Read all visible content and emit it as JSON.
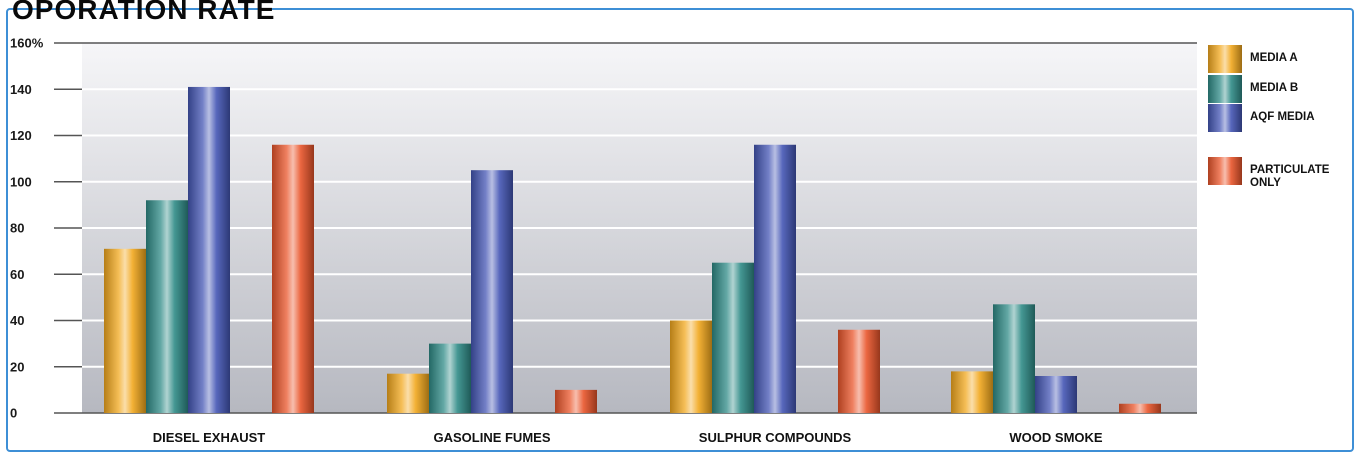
{
  "heading": "OPORATION RATE",
  "chart_data": {
    "type": "bar",
    "categories": [
      "DIESEL EXHAUST",
      "GASOLINE FUMES",
      "SULPHUR COMPOUNDS",
      "WOOD SMOKE"
    ],
    "series": [
      {
        "name": "MEDIA A",
        "values": [
          71,
          17,
          40,
          18
        ],
        "color": "#f2a81e"
      },
      {
        "name": "MEDIA B",
        "values": [
          92,
          30,
          65,
          47
        ],
        "color": "#2f8b87"
      },
      {
        "name": "AQF MEDIA",
        "values": [
          141,
          105,
          116,
          16
        ],
        "color": "#4456b4"
      },
      {
        "name": "PARTICULATE ONLY",
        "values": [
          116,
          10,
          36,
          4
        ],
        "color": "#e9552b"
      }
    ],
    "legend": [
      {
        "lines": [
          "MEDIA A"
        ],
        "series": 0
      },
      {
        "lines": [
          "MEDIA B"
        ],
        "series": 1
      },
      {
        "lines": [
          "AQF MEDIA"
        ],
        "series": 2
      },
      {
        "lines": [
          "PARTICULATE",
          "ONLY"
        ],
        "series": 3
      }
    ],
    "ytick_labels": [
      "0",
      "20",
      "40",
      "60",
      "80",
      "100",
      "120",
      "140",
      "160%"
    ],
    "yticks": [
      0,
      20,
      40,
      60,
      80,
      100,
      120,
      140,
      160
    ],
    "ylim": [
      0,
      160
    ],
    "grid": true,
    "legend_position": "right"
  }
}
